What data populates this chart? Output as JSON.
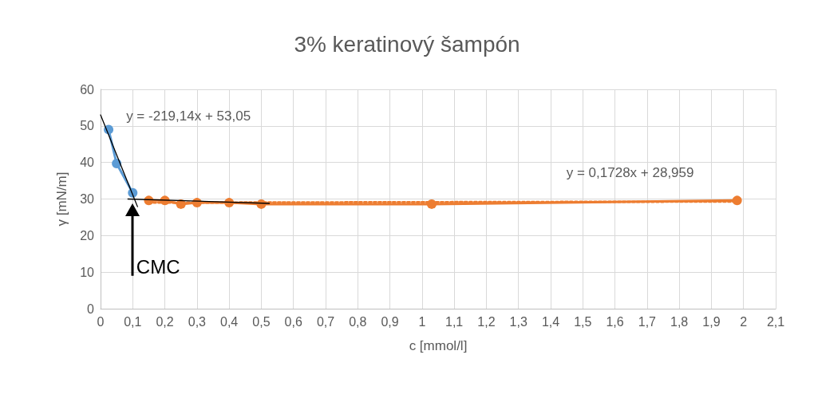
{
  "chart_data": {
    "type": "line",
    "title": "3% keratinový šampón",
    "xlabel": "c [mmol/l]",
    "ylabel": "γ [mN/m]",
    "xlim": [
      0,
      2.1
    ],
    "xticks": [
      {
        "value": 0,
        "label": "0"
      },
      {
        "value": 0.1,
        "label": "0,1"
      },
      {
        "value": 0.2,
        "label": "0,2"
      },
      {
        "value": 0.3,
        "label": "0,3"
      },
      {
        "value": 0.4,
        "label": "0,4"
      },
      {
        "value": 0.5,
        "label": "0,5"
      },
      {
        "value": 0.6,
        "label": "0,6"
      },
      {
        "value": 0.7,
        "label": "0,7"
      },
      {
        "value": 0.8,
        "label": "0,8"
      },
      {
        "value": 0.9,
        "label": "0,9"
      },
      {
        "value": 1,
        "label": "1"
      },
      {
        "value": 1.1,
        "label": "1,1"
      },
      {
        "value": 1.2,
        "label": "1,2"
      },
      {
        "value": 1.3,
        "label": "1,3"
      },
      {
        "value": 1.4,
        "label": "1,4"
      },
      {
        "value": 1.5,
        "label": "1,5"
      },
      {
        "value": 1.6,
        "label": "1,6"
      },
      {
        "value": 1.7,
        "label": "1,7"
      },
      {
        "value": 1.8,
        "label": "1,8"
      },
      {
        "value": 1.9,
        "label": "1,9"
      },
      {
        "value": 2,
        "label": "2"
      },
      {
        "value": 2.1,
        "label": "2,1"
      }
    ],
    "ylim": [
      0,
      60
    ],
    "yticks": [
      0,
      10,
      20,
      30,
      40,
      50,
      60
    ],
    "grid": true,
    "series": [
      {
        "color": "#5b9bd5",
        "marker": "circle",
        "line_style": "solid",
        "x": [
          0.025,
          0.05,
          0.1
        ],
        "values": [
          49,
          39.7,
          31.7
        ]
      },
      {
        "color": "#ed7d31",
        "marker": "circle",
        "line_style": "solid",
        "x": [
          0.15,
          0.2,
          0.25,
          0.3,
          0.4,
          0.5,
          1.03,
          1.98
        ],
        "values": [
          29.6,
          29.6,
          28.6,
          29,
          29,
          28.6,
          28.6,
          29.6
        ]
      },
      {
        "color": "#ed7d31",
        "marker": "none",
        "line_style": "dotted",
        "x": [
          0.15,
          1.98
        ],
        "values": [
          29,
          29.3
        ]
      },
      {
        "color": "#000000",
        "marker": "none",
        "line_style": "solid",
        "x": [
          0,
          0.115
        ],
        "values": [
          53,
          27.9
        ]
      },
      {
        "color": "#000000",
        "marker": "none",
        "line_style": "solid",
        "x": [
          0.085,
          0.525
        ],
        "values": [
          30,
          28.8
        ]
      }
    ],
    "annotations": [
      "y = -219,14x + 53,05",
      "y = 0,1728x + 28,959",
      "CMC"
    ]
  }
}
